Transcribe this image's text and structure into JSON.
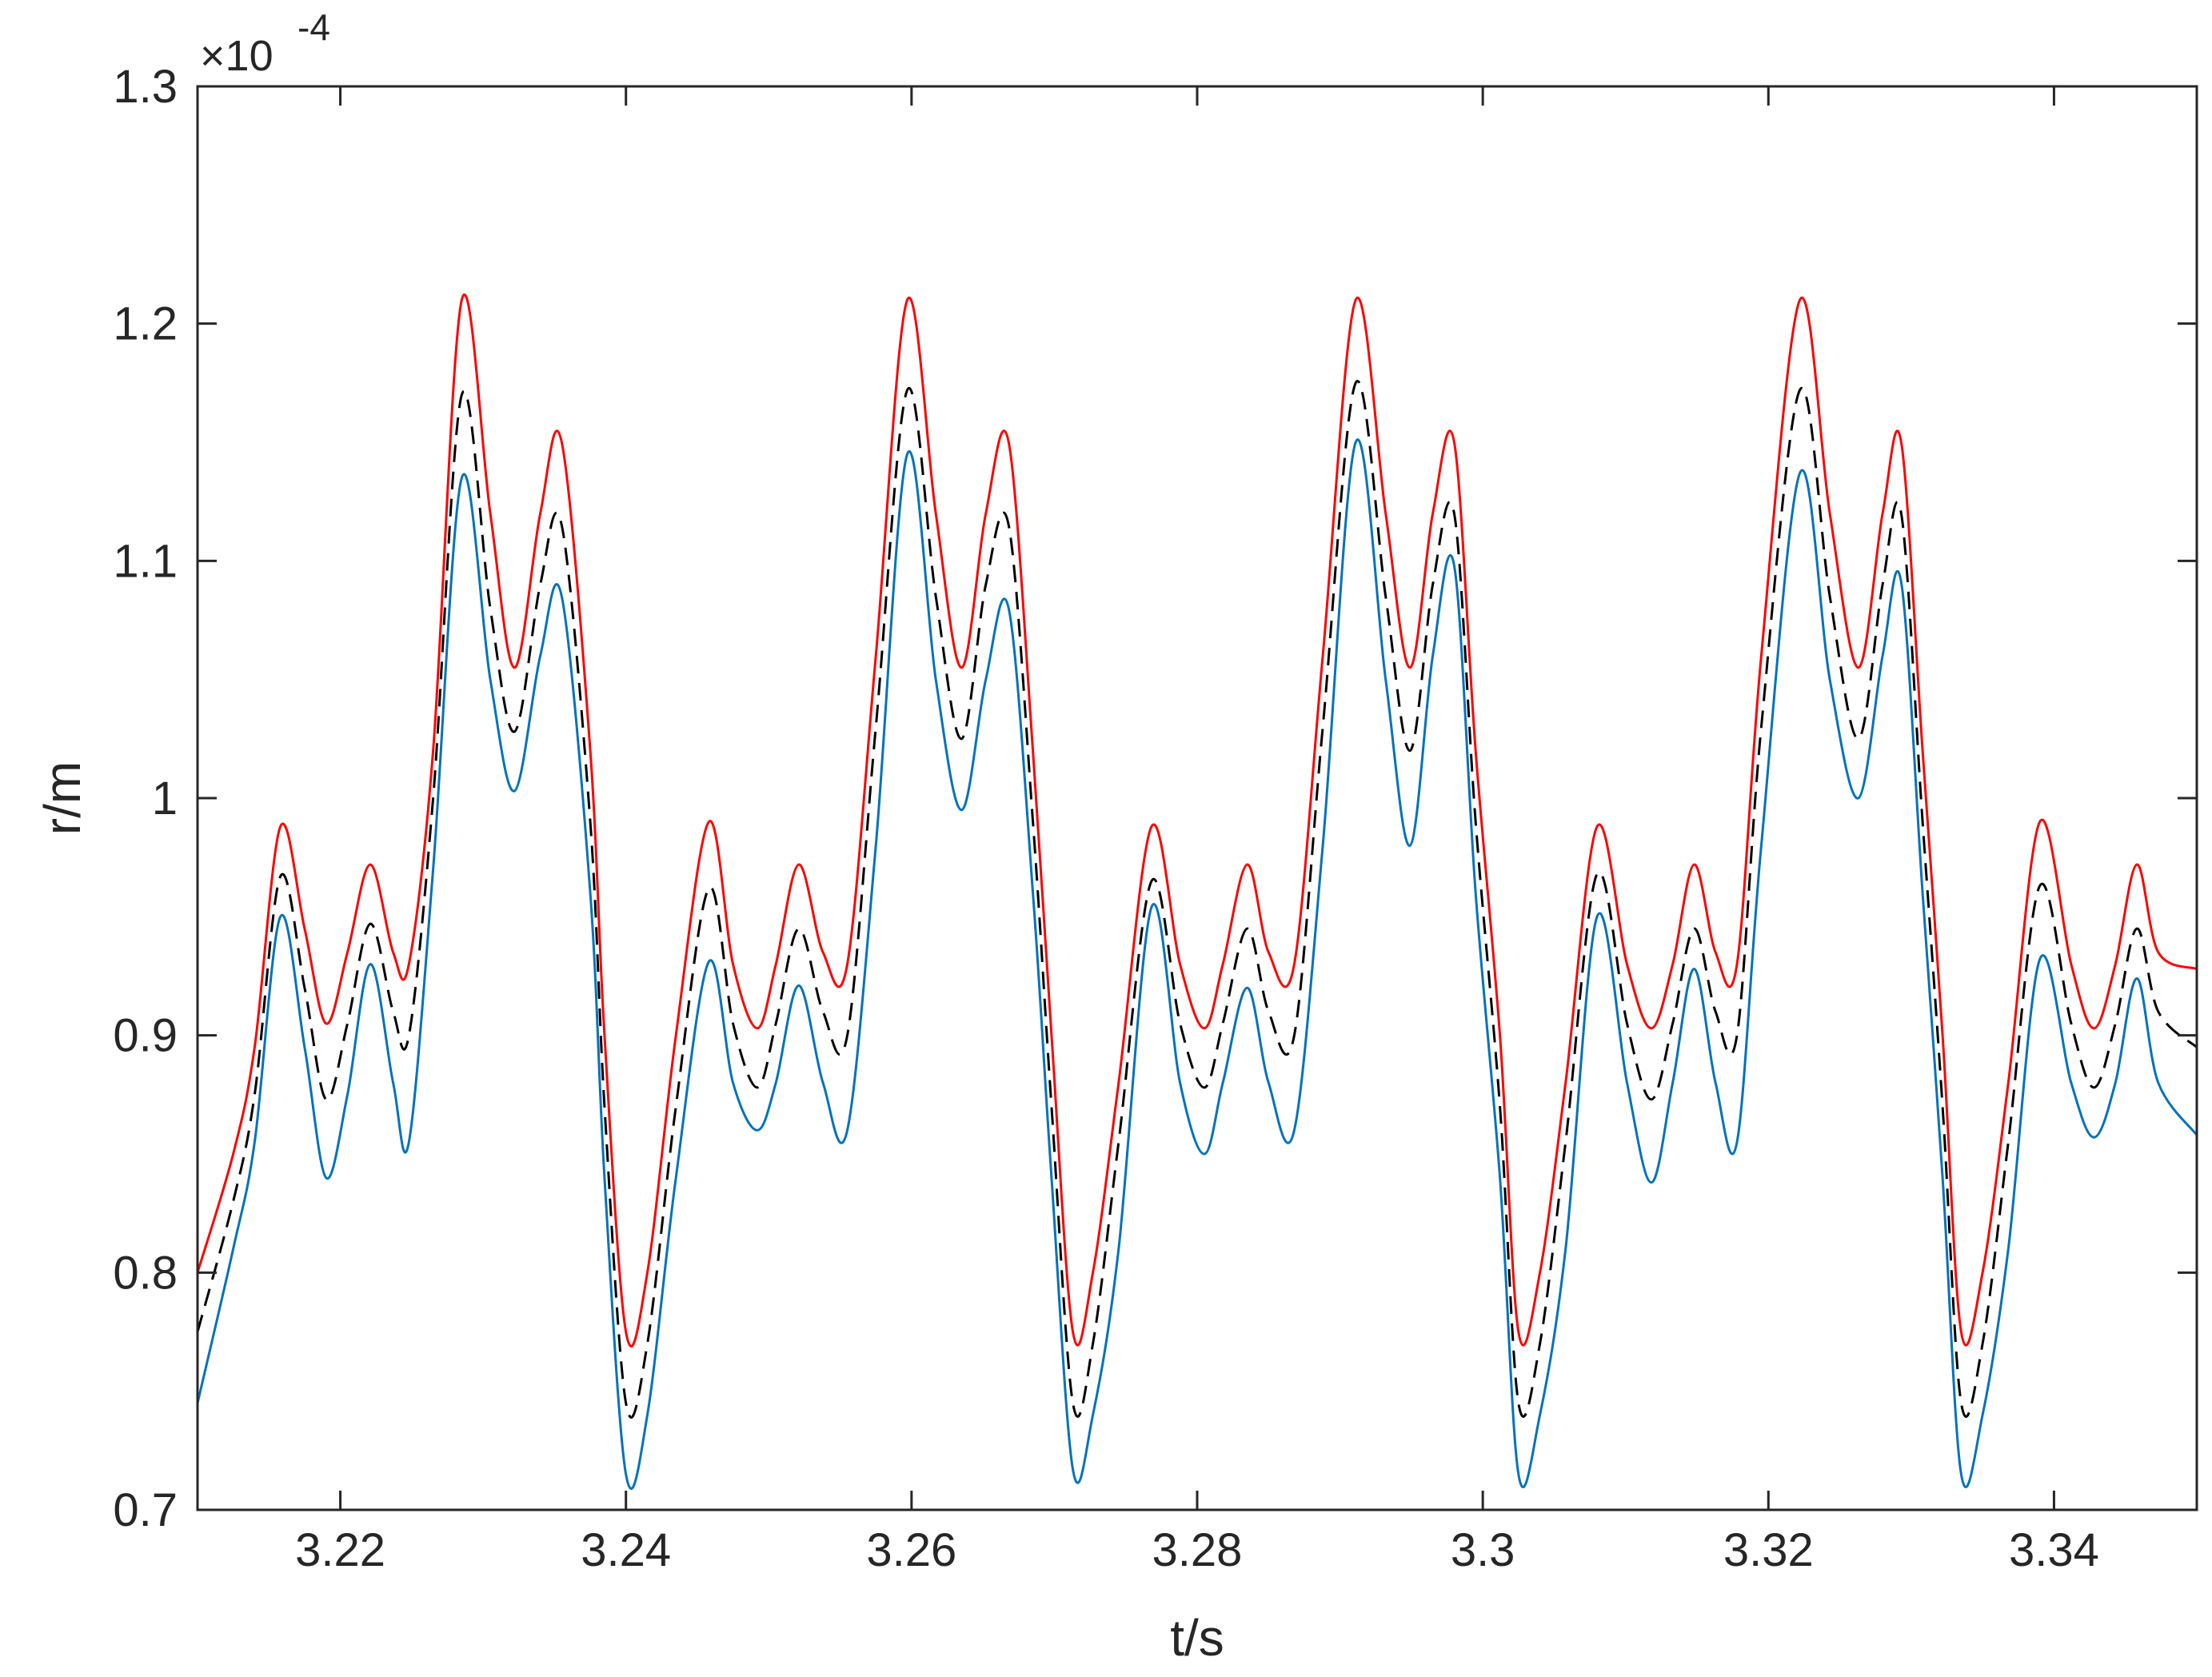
{
  "chart_data": {
    "type": "line",
    "title": "",
    "xlabel": "t/s",
    "ylabel": "r/m",
    "y_exponent_label": "×10",
    "y_exponent_power": "-4",
    "xlim": [
      3.21,
      3.35
    ],
    "ylim": [
      0.7,
      1.3
    ],
    "y_scale_factor": 0.0001,
    "grid": false,
    "legend": "none",
    "xticks": [
      3.22,
      3.24,
      3.26,
      3.28,
      3.3,
      3.32,
      3.34
    ],
    "xtick_labels": [
      "3.22",
      "3.24",
      "3.26",
      "3.28",
      "3.3",
      "3.32",
      "3.34"
    ],
    "yticks": [
      0.7,
      0.8,
      0.9,
      1.0,
      1.1,
      1.2,
      1.3
    ],
    "ytick_labels": [
      "0.7",
      "0.8",
      "0.9",
      "1",
      "1.1",
      "1.2",
      "1.3"
    ],
    "series": [
      {
        "color": "#ff0000",
        "style": "solid",
        "x": [
          3.21,
          3.2125,
          3.214,
          3.2158,
          3.2175,
          3.219,
          3.2205,
          3.2221,
          3.2237,
          3.2248,
          3.2265,
          3.2285,
          3.2305,
          3.2322,
          3.234,
          3.2355,
          3.2375,
          3.2385,
          3.24,
          3.2415,
          3.2435,
          3.2458,
          3.2475,
          3.2492,
          3.2505,
          3.2521,
          3.2538,
          3.2555,
          3.2575,
          3.2597,
          3.2617,
          3.2635,
          3.2652,
          3.2668,
          3.2685,
          3.2698,
          3.2713,
          3.2727,
          3.2745,
          3.2768,
          3.2788,
          3.2805,
          3.2818,
          3.2835,
          3.285,
          3.2868,
          3.2888,
          3.2911,
          3.2932,
          3.2949,
          3.2965,
          3.298,
          3.2995,
          3.3012,
          3.3025,
          3.304,
          3.3058,
          3.308,
          3.3101,
          3.3118,
          3.3133,
          3.3148,
          3.3163,
          3.3178,
          3.3195,
          3.3222,
          3.3243,
          3.3263,
          3.328,
          3.3293,
          3.3308,
          3.3322,
          3.3335,
          3.335,
          3.3368,
          3.339,
          3.3412,
          3.3428,
          3.3443,
          3.3458,
          3.3473,
          3.35
        ],
        "y": [
          0.8,
          0.85,
          0.895,
          0.988,
          0.945,
          0.905,
          0.935,
          0.972,
          0.935,
          0.93,
          1.02,
          1.21,
          1.12,
          1.055,
          1.12,
          1.15,
          1.02,
          0.9,
          0.775,
          0.8,
          0.9,
          0.99,
          0.93,
          0.903,
          0.93,
          0.972,
          0.935,
          0.93,
          1.06,
          1.21,
          1.12,
          1.055,
          1.12,
          1.15,
          1.02,
          0.9,
          0.775,
          0.8,
          0.88,
          0.988,
          0.93,
          0.903,
          0.93,
          0.972,
          0.935,
          0.93,
          1.06,
          1.21,
          1.12,
          1.055,
          1.12,
          1.15,
          1.02,
          0.9,
          0.775,
          0.8,
          0.88,
          0.988,
          0.93,
          0.903,
          0.93,
          0.972,
          0.935,
          0.93,
          1.06,
          1.21,
          1.12,
          1.055,
          1.12,
          1.15,
          1.02,
          0.9,
          0.775,
          0.8,
          0.88,
          0.99,
          0.93,
          0.903,
          0.93,
          0.972,
          0.935,
          0.928
        ]
      },
      {
        "color": "#000000",
        "style": "dashed",
        "x": [
          3.21,
          3.2125,
          3.214,
          3.2158,
          3.2175,
          3.219,
          3.2205,
          3.2221,
          3.2237,
          3.2248,
          3.2265,
          3.2285,
          3.2305,
          3.2322,
          3.234,
          3.2355,
          3.2375,
          3.2385,
          3.24,
          3.2415,
          3.2435,
          3.2458,
          3.2475,
          3.2492,
          3.2505,
          3.2521,
          3.2538,
          3.2555,
          3.2575,
          3.2597,
          3.2617,
          3.2635,
          3.2652,
          3.2668,
          3.2685,
          3.2698,
          3.2713,
          3.2727,
          3.2745,
          3.2768,
          3.2788,
          3.2805,
          3.2818,
          3.2835,
          3.285,
          3.2868,
          3.2888,
          3.2911,
          3.2932,
          3.2949,
          3.2965,
          3.298,
          3.2995,
          3.3012,
          3.3025,
          3.304,
          3.3058,
          3.308,
          3.3101,
          3.3118,
          3.3133,
          3.3148,
          3.3163,
          3.3178,
          3.3195,
          3.3222,
          3.3243,
          3.3263,
          3.328,
          3.3293,
          3.3308,
          3.3322,
          3.3335,
          3.335,
          3.3368,
          3.339,
          3.3412,
          3.3428,
          3.3443,
          3.3458,
          3.3473,
          3.35
        ],
        "y": [
          0.775,
          0.83,
          0.875,
          0.967,
          0.92,
          0.873,
          0.905,
          0.947,
          0.91,
          0.9,
          1.0,
          1.17,
          1.08,
          1.028,
          1.09,
          1.115,
          0.99,
          0.87,
          0.745,
          0.77,
          0.87,
          0.962,
          0.905,
          0.878,
          0.905,
          0.945,
          0.91,
          0.9,
          1.03,
          1.172,
          1.085,
          1.025,
          1.09,
          1.115,
          0.99,
          0.87,
          0.745,
          0.77,
          0.855,
          0.965,
          0.905,
          0.878,
          0.905,
          0.945,
          0.91,
          0.9,
          1.03,
          1.175,
          1.085,
          1.02,
          1.09,
          1.12,
          0.99,
          0.87,
          0.745,
          0.77,
          0.855,
          0.968,
          0.905,
          0.873,
          0.905,
          0.945,
          0.91,
          0.9,
          1.03,
          1.172,
          1.085,
          1.025,
          1.09,
          1.12,
          0.99,
          0.87,
          0.745,
          0.77,
          0.855,
          0.963,
          0.905,
          0.878,
          0.905,
          0.945,
          0.91,
          0.895
        ]
      },
      {
        "color": "#0072bd",
        "style": "solid",
        "x": [
          3.21,
          3.2125,
          3.214,
          3.2158,
          3.2175,
          3.219,
          3.2205,
          3.2221,
          3.2237,
          3.2248,
          3.2265,
          3.2285,
          3.2305,
          3.2322,
          3.234,
          3.2355,
          3.2375,
          3.2385,
          3.24,
          3.2415,
          3.2435,
          3.2458,
          3.2475,
          3.2492,
          3.2505,
          3.2521,
          3.2538,
          3.2555,
          3.2575,
          3.2597,
          3.2617,
          3.2635,
          3.2652,
          3.2668,
          3.2685,
          3.2698,
          3.2713,
          3.2727,
          3.2745,
          3.2768,
          3.2788,
          3.2805,
          3.2818,
          3.2835,
          3.285,
          3.2868,
          3.2888,
          3.2911,
          3.2932,
          3.2949,
          3.2965,
          3.298,
          3.2995,
          3.3012,
          3.3025,
          3.304,
          3.3058,
          3.308,
          3.3101,
          3.3118,
          3.3133,
          3.3148,
          3.3163,
          3.3178,
          3.3195,
          3.3222,
          3.3243,
          3.3263,
          3.328,
          3.3293,
          3.3308,
          3.3322,
          3.3335,
          3.335,
          3.3368,
          3.339,
          3.3412,
          3.3428,
          3.3443,
          3.3458,
          3.3473,
          3.35
        ],
        "y": [
          0.745,
          0.81,
          0.855,
          0.95,
          0.895,
          0.84,
          0.875,
          0.93,
          0.88,
          0.855,
          0.97,
          1.135,
          1.05,
          1.003,
          1.06,
          1.085,
          0.96,
          0.84,
          0.715,
          0.74,
          0.84,
          0.931,
          0.88,
          0.86,
          0.88,
          0.921,
          0.88,
          0.86,
          0.98,
          1.145,
          1.05,
          0.995,
          1.05,
          1.08,
          0.96,
          0.84,
          0.717,
          0.74,
          0.81,
          0.954,
          0.88,
          0.85,
          0.88,
          0.92,
          0.88,
          0.86,
          0.98,
          1.15,
          1.05,
          0.98,
          1.06,
          1.098,
          0.96,
          0.84,
          0.715,
          0.74,
          0.81,
          0.95,
          0.88,
          0.838,
          0.88,
          0.928,
          0.88,
          0.855,
          0.98,
          1.137,
          1.05,
          1.0,
          1.06,
          1.091,
          0.96,
          0.84,
          0.715,
          0.74,
          0.81,
          0.932,
          0.88,
          0.857,
          0.88,
          0.924,
          0.88,
          0.858
        ]
      }
    ]
  }
}
